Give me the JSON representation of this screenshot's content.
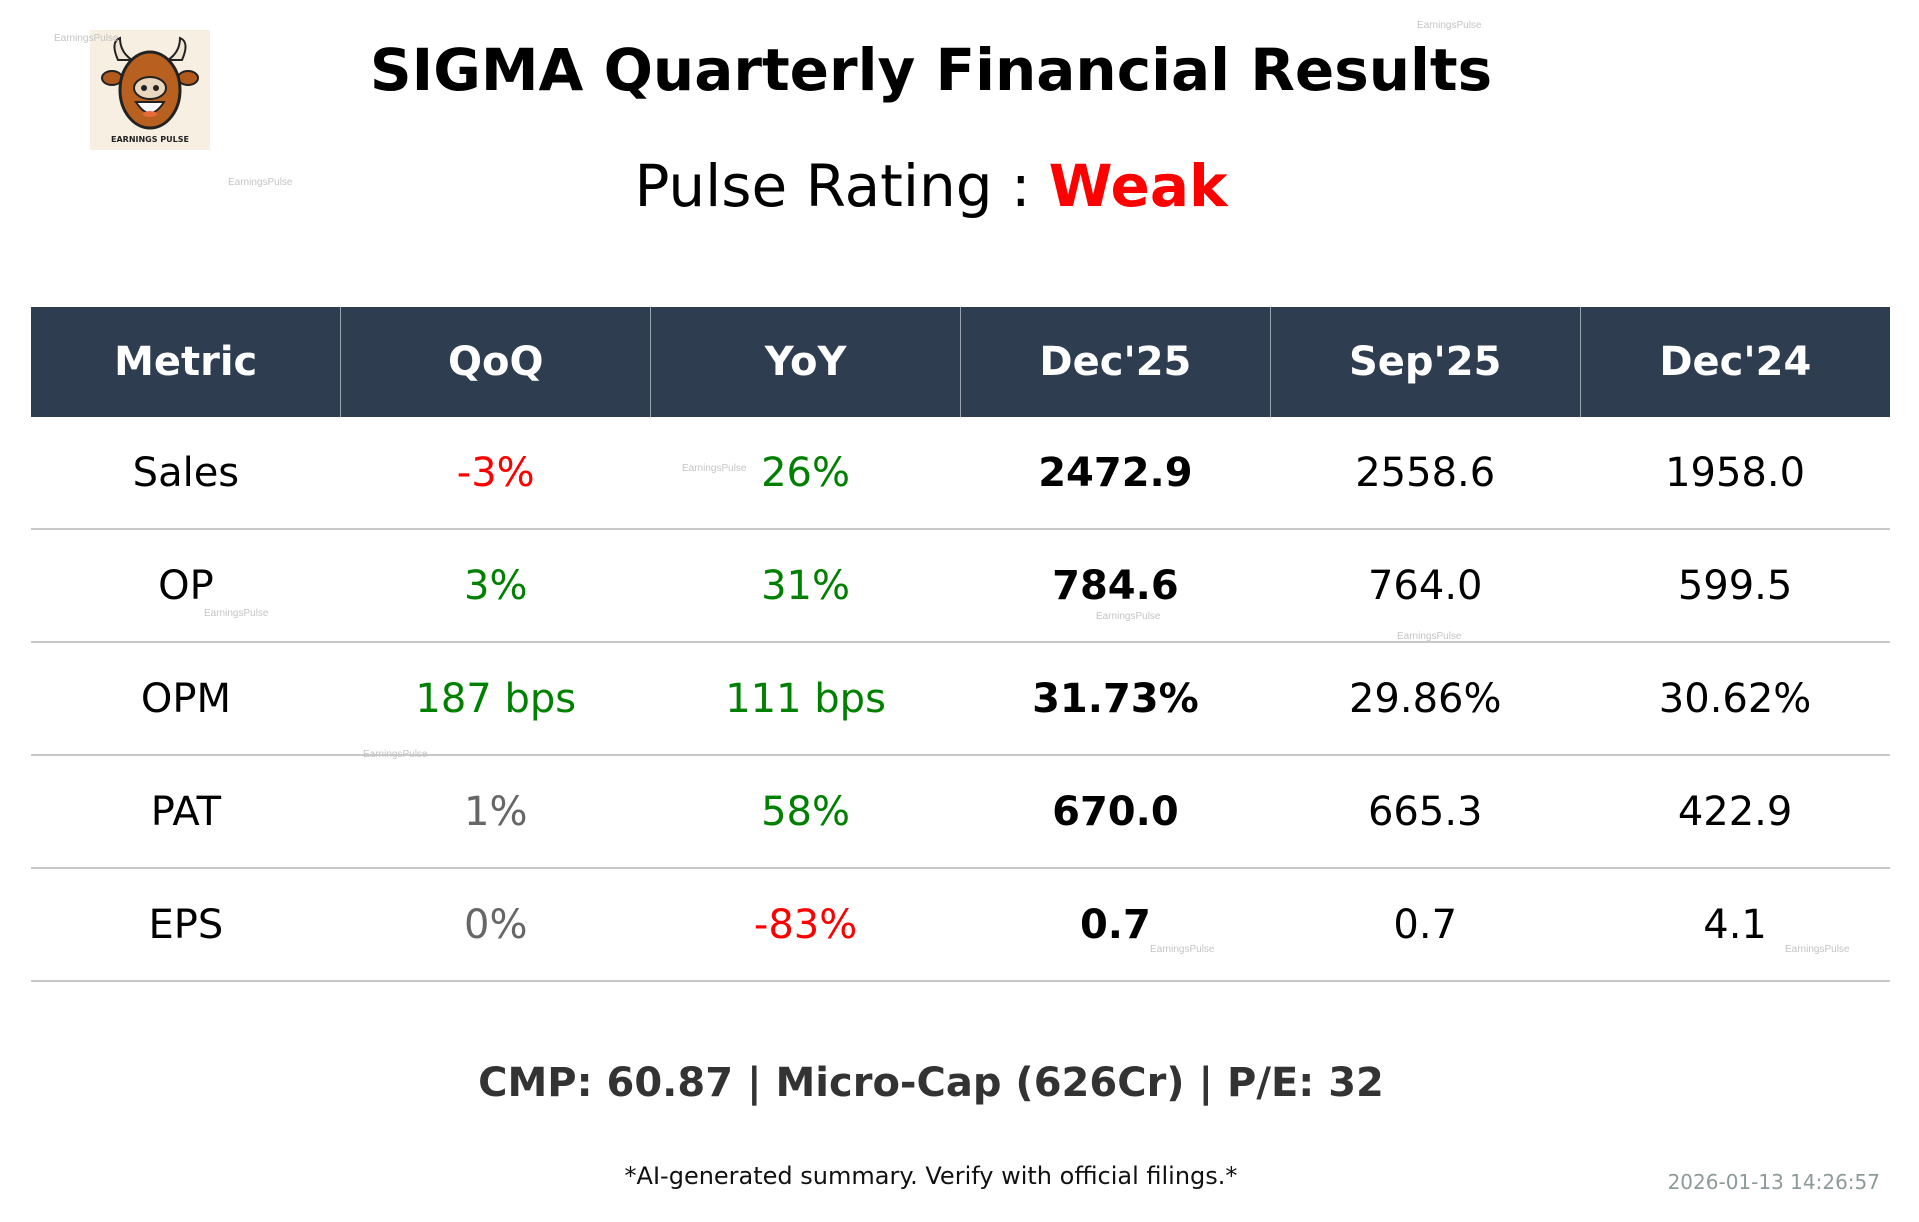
{
  "logo": {
    "text": "EARNINGS PULSE"
  },
  "title": "SIGMA Quarterly Financial Results",
  "rating": {
    "label": "Pulse Rating :",
    "value": "Weak",
    "color": "#ff0000"
  },
  "watermark": "EarningsPulse",
  "colors": {
    "header_bg": "#2e3e50",
    "positive": "#008000",
    "negative": "#ff0000",
    "neutral": "#666666"
  },
  "table": {
    "headers": [
      "Metric",
      "QoQ",
      "YoY",
      "Dec'25",
      "Sep'25",
      "Dec'24"
    ],
    "rows": [
      {
        "metric": "Sales",
        "qoq": "-3%",
        "qoq_c": "#ff0000",
        "yoy": "26%",
        "yoy_c": "#008000",
        "cur": "2472.9",
        "prev": "2558.6",
        "ly": "1958.0"
      },
      {
        "metric": "OP",
        "qoq": "3%",
        "qoq_c": "#008000",
        "yoy": "31%",
        "yoy_c": "#008000",
        "cur": "784.6",
        "prev": "764.0",
        "ly": "599.5"
      },
      {
        "metric": "OPM",
        "qoq": "187 bps",
        "qoq_c": "#008000",
        "yoy": "111 bps",
        "yoy_c": "#008000",
        "cur": "31.73%",
        "prev": "29.86%",
        "ly": "30.62%"
      },
      {
        "metric": "PAT",
        "qoq": "1%",
        "qoq_c": "#666666",
        "yoy": "58%",
        "yoy_c": "#008000",
        "cur": "670.0",
        "prev": "665.3",
        "ly": "422.9"
      },
      {
        "metric": "EPS",
        "qoq": "0%",
        "qoq_c": "#666666",
        "yoy": "-83%",
        "yoy_c": "#ff0000",
        "cur": "0.7",
        "prev": "0.7",
        "ly": "4.1"
      }
    ]
  },
  "footer": {
    "summary": "CMP: 60.87 | Micro-Cap (626Cr) | P/E: 32",
    "disclaimer": "*AI-generated summary. Verify with official filings.*",
    "timestamp": "2026-01-13 14:26:57"
  }
}
